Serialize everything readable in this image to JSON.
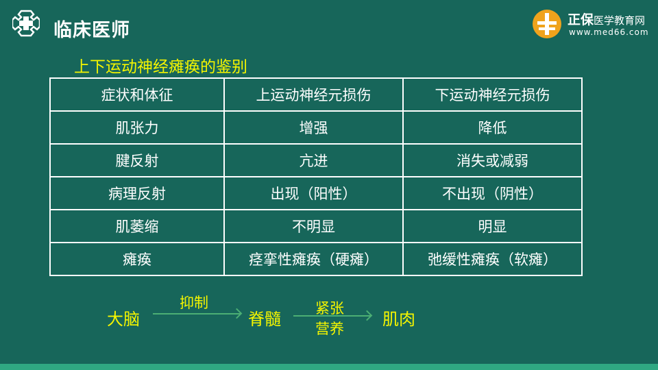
{
  "header": {
    "brand": "临床医师",
    "partner_name": "正保",
    "partner_sub": "医学教育网",
    "partner_url": "www.med66.com"
  },
  "title": "上下运动神经瘫痪的鉴别",
  "table": {
    "headers": [
      "症状和体征",
      "上运动神经元损伤",
      "下运动神经元损伤"
    ],
    "rows": [
      [
        "肌张力",
        "增强",
        "降低"
      ],
      [
        "腱反射",
        "亢进",
        "消失或减弱"
      ],
      [
        "病理反射",
        "出现（阳性）",
        "不出现（阴性）"
      ],
      [
        "肌萎缩",
        "不明显",
        "明显"
      ],
      [
        "瘫痪",
        "痉挛性瘫痪（硬瘫）",
        "弛缓性瘫痪（软瘫）"
      ]
    ]
  },
  "flow": {
    "n1": "大脑",
    "a1": "抑制",
    "n2": "脊髓",
    "a2_top": "紧张",
    "a2_bottom": "营养",
    "n3": "肌肉"
  },
  "colors": {
    "background": "#17665a",
    "title": "#f5f500",
    "arrow": "#4caf74"
  }
}
